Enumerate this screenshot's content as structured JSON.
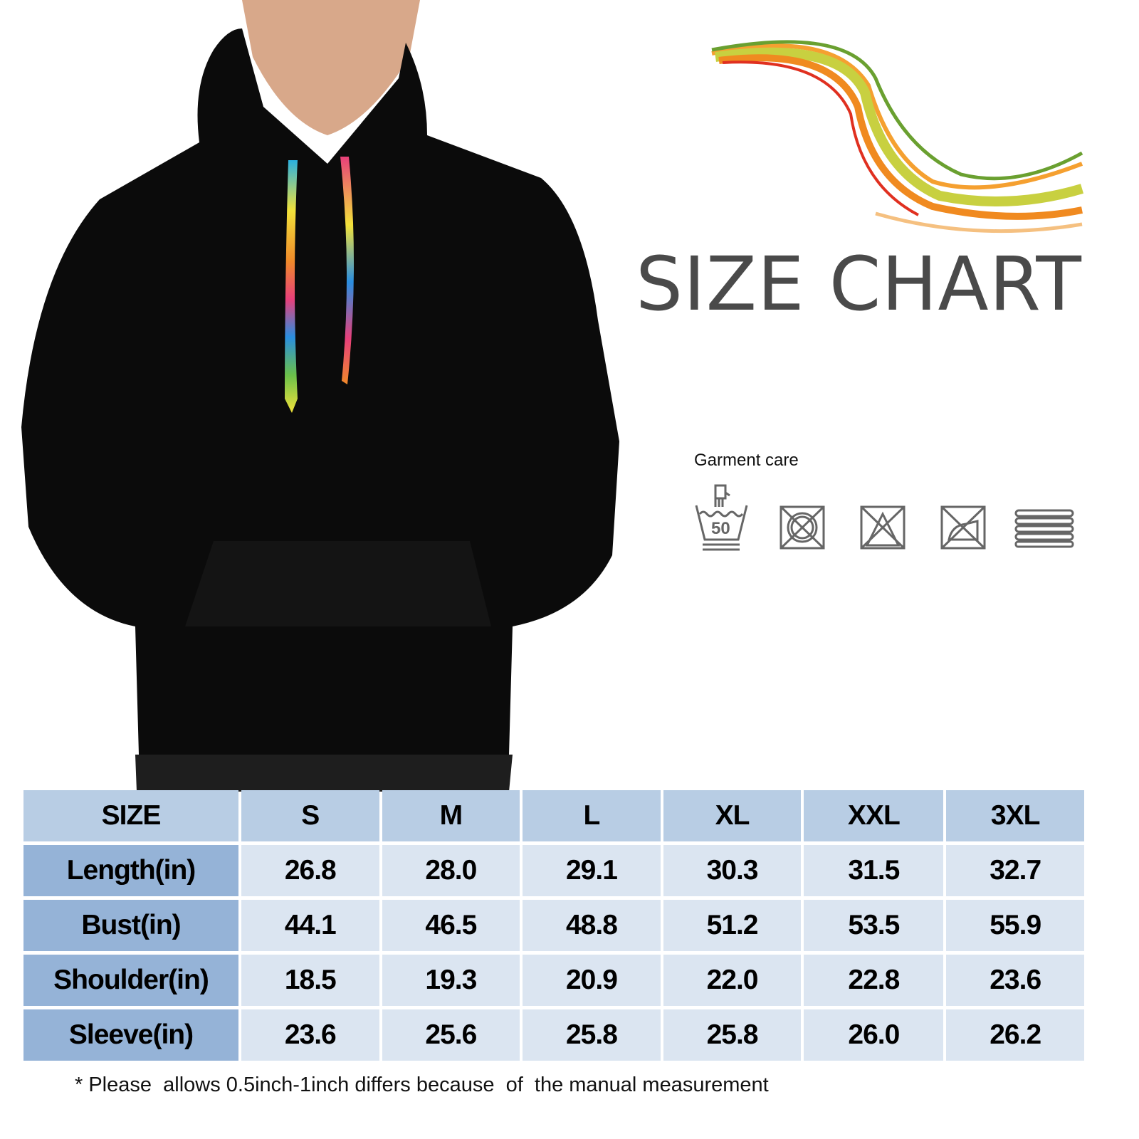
{
  "title": "SIZE CHART",
  "garment_care": {
    "label": "Garment care",
    "icons": [
      "hand-wash-50-icon",
      "do-not-dry-clean-icon",
      "do-not-bleach-icon",
      "do-not-iron-icon",
      "dry-flat-icon"
    ],
    "wash_temp": "50"
  },
  "product": {
    "color": "black",
    "drawstring": "rainbow"
  },
  "colors": {
    "header": "#b8cde4",
    "row_header": "#95b3d7",
    "cell": "#dbe5f1"
  },
  "table": {
    "header": [
      "SIZE",
      "S",
      "M",
      "L",
      "XL",
      "XXL",
      "3XL"
    ],
    "rows": [
      {
        "label": "Length(in)",
        "values": [
          "26.8",
          "28.0",
          "29.1",
          "30.3",
          "31.5",
          "32.7"
        ]
      },
      {
        "label": "Bust(in)",
        "values": [
          "44.1",
          "46.5",
          "48.8",
          "51.2",
          "53.5",
          "55.9"
        ]
      },
      {
        "label": "Shoulder(in)",
        "values": [
          "18.5",
          "19.3",
          "20.9",
          "22.0",
          "22.8",
          "23.6"
        ]
      },
      {
        "label": "Sleeve(in)",
        "values": [
          "23.6",
          "25.6",
          "25.8",
          "25.8",
          "26.0",
          "26.2"
        ]
      }
    ]
  },
  "note": "* Please  allows 0.5inch-1inch differs because  of  the manual measurement"
}
